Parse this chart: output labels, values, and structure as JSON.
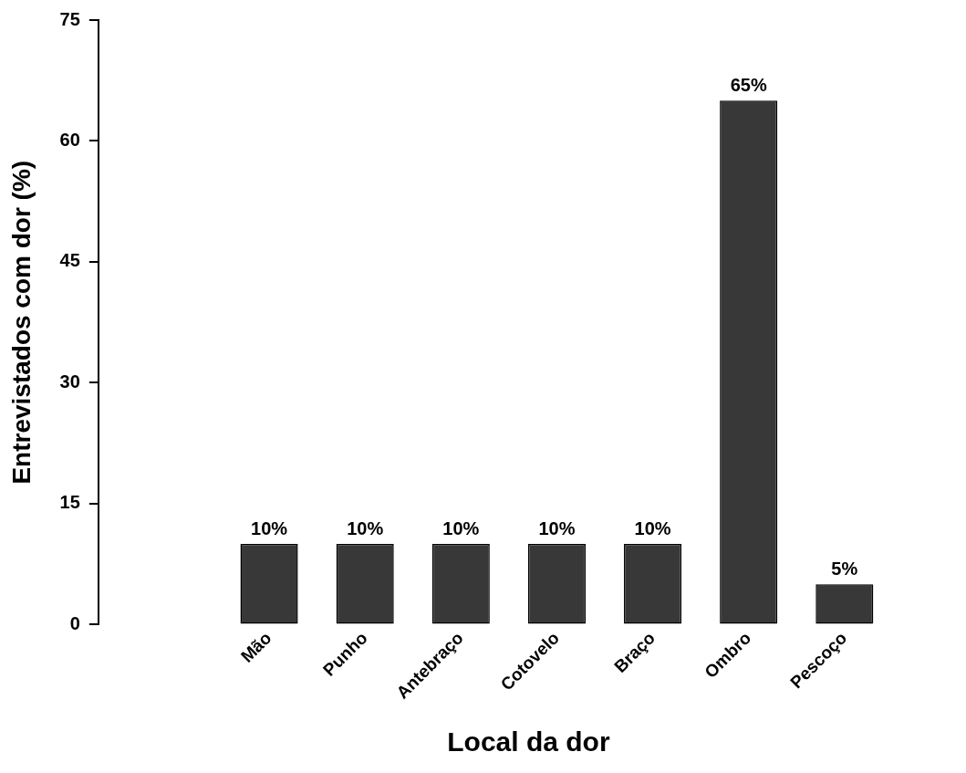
{
  "chart_data": {
    "type": "bar",
    "xlabel": "Local da dor",
    "ylabel": "Entrevistados com dor (%)",
    "categories": [
      "Mão",
      "Punho",
      "Antebraço",
      "Cotovelo",
      "Braço",
      "Ombro",
      "Pescoço"
    ],
    "values": [
      10,
      10,
      10,
      10,
      10,
      65,
      5
    ],
    "value_labels": [
      "10%",
      "10%",
      "10%",
      "10%",
      "10%",
      "65%",
      "5%"
    ],
    "color": "#383838",
    "ylim": [
      0,
      75
    ],
    "yticks": [
      0,
      15,
      30,
      45,
      60,
      75
    ],
    "grid": false,
    "legend": false
  }
}
